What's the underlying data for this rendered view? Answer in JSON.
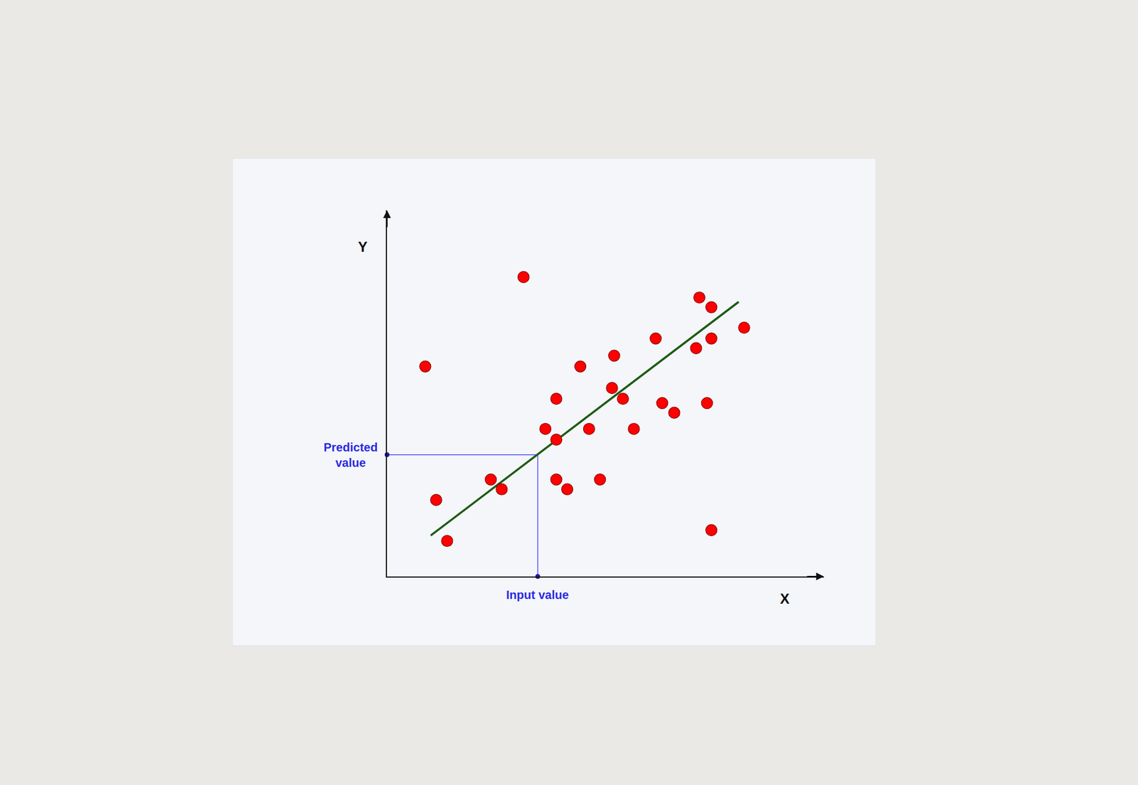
{
  "chart_data": {
    "type": "scatter",
    "x_label": "X",
    "y_label": "Y",
    "xlim": [
      0,
      40
    ],
    "ylim": [
      0,
      34
    ],
    "tick_labels": false,
    "grid": false,
    "marker": "circle",
    "color": "#ff0000",
    "x": [
      12.5,
      3.5,
      28.6,
      29.7,
      32.7,
      29.7,
      28.3,
      24.6,
      20.8,
      17.7,
      20.6,
      21.6,
      15.5,
      25.2,
      26.3,
      29.3,
      14.5,
      18.5,
      22.6,
      15.5,
      9.5,
      10.5,
      15.5,
      16.5,
      19.5,
      4.5,
      5.5,
      29.7
    ],
    "values": [
      27.8,
      19.5,
      25.9,
      25.0,
      23.1,
      22.1,
      21.2,
      22.1,
      20.5,
      19.5,
      17.5,
      16.5,
      16.5,
      16.1,
      15.2,
      16.1,
      13.7,
      13.7,
      13.7,
      12.7,
      9.0,
      8.1,
      9.0,
      8.1,
      9.0,
      7.1,
      3.3,
      4.3
    ],
    "fit_line": {
      "type": "line",
      "line_style": "solid",
      "color": "#1e5a14",
      "x": [
        4.0,
        32.2
      ],
      "values": [
        3.8,
        25.5
      ]
    },
    "guide": {
      "color": "#3333ff",
      "line_style": "solid",
      "input_value": 13.8,
      "predicted_value": 11.3,
      "input_label": "Input value",
      "predicted_label": "Predicted value"
    }
  }
}
